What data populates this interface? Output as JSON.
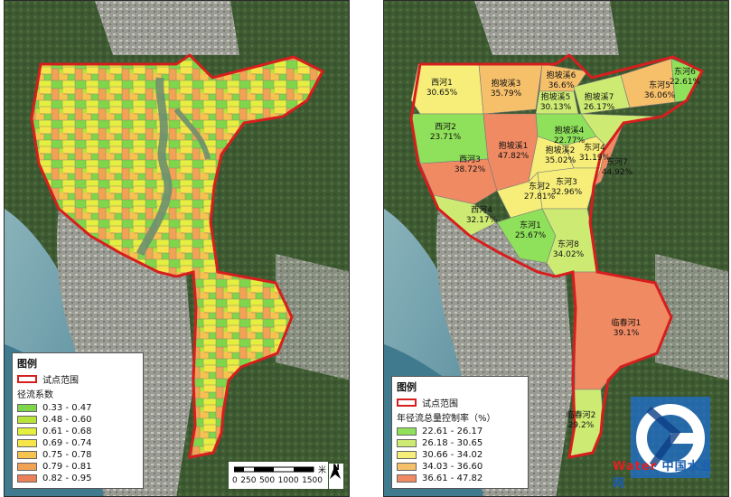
{
  "left_map": {
    "legend": {
      "title": "图例",
      "boundary_label": "试点范围",
      "subtitle": "径流系数",
      "classes": [
        {
          "label": "0.33 - 0.47",
          "color": "#7fd64a"
        },
        {
          "label": "0.48 - 0.60",
          "color": "#b7e33a"
        },
        {
          "label": "0.61 - 0.68",
          "color": "#e4ef3f"
        },
        {
          "label": "0.69 - 0.74",
          "color": "#f5e44a"
        },
        {
          "label": "0.75 - 0.78",
          "color": "#f7c34f"
        },
        {
          "label": "0.79 - 0.81",
          "color": "#f2a255"
        },
        {
          "label": "0.82 - 0.95",
          "color": "#ec8058"
        }
      ]
    },
    "scale": {
      "ticks": [
        "0",
        "250",
        "500",
        "1000",
        "1500"
      ],
      "unit": "米"
    },
    "north": "N"
  },
  "right_map": {
    "legend": {
      "title": "图例",
      "boundary_label": "试点范围",
      "subtitle": "年径流总量控制率（%）",
      "classes": [
        {
          "label": "22.61 - 26.17",
          "color": "#8fe05a"
        },
        {
          "label": "26.18 - 30.65",
          "color": "#cdeb73"
        },
        {
          "label": "30.66 - 34.02",
          "color": "#f6ee78"
        },
        {
          "label": "34.03 - 36.60",
          "color": "#f6bf6a"
        },
        {
          "label": "36.61 - 47.82",
          "color": "#ef8a63"
        }
      ]
    },
    "zones": [
      {
        "name": "西河1",
        "value": "30.65%"
      },
      {
        "name": "抱坡溪3",
        "value": "35.79%"
      },
      {
        "name": "抱坡溪6",
        "value": "36.6%"
      },
      {
        "name": "东河6",
        "value": "22.61%"
      },
      {
        "name": "东河5",
        "value": "36.06%"
      },
      {
        "name": "抱坡溪5",
        "value": "30.13%"
      },
      {
        "name": "抱坡溪7",
        "value": "26.17%"
      },
      {
        "name": "西河2",
        "value": "23.71%"
      },
      {
        "name": "抱坡溪4",
        "value": "22.77%"
      },
      {
        "name": "抱坡溪1",
        "value": "47.82%"
      },
      {
        "name": "抱坡溪2",
        "value": "35.02%"
      },
      {
        "name": "东河4",
        "value": "31.19%"
      },
      {
        "name": "西河3",
        "value": "38.72%"
      },
      {
        "name": "东河7",
        "value": "44.92%"
      },
      {
        "name": "东河2",
        "value": "27.81%"
      },
      {
        "name": "东河3",
        "value": "32.96%"
      },
      {
        "name": "西河4",
        "value": "32.17%"
      },
      {
        "name": "东河1",
        "value": "25.67%"
      },
      {
        "name": "东河8",
        "value": "34.02%"
      },
      {
        "name": "临春河1",
        "value": "39.1%"
      },
      {
        "name": "临春河2",
        "value": "29.2%"
      }
    ]
  },
  "watermark": {
    "text": "Water",
    "text2": "中国水业网"
  }
}
